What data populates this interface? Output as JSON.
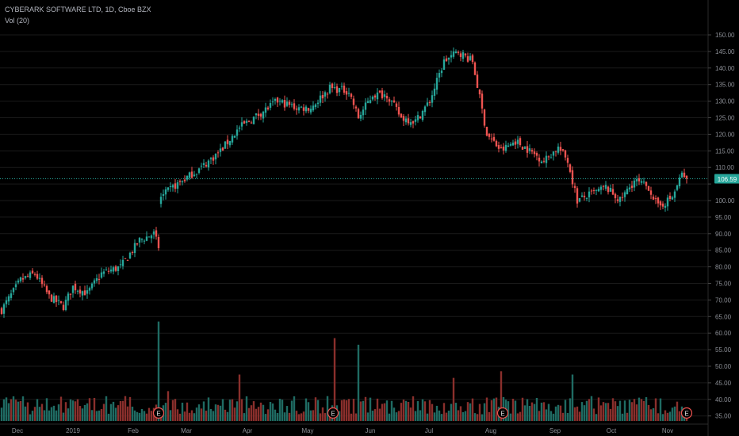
{
  "header": {
    "title": "CYBERARK SOFTWARE LTD, 1D, Cboe BZX",
    "volume_label": "Vol (20)"
  },
  "colors": {
    "up": "#26a69a",
    "down": "#ef5350",
    "vol_up": "#1f6b63",
    "vol_down": "#8a2f2c",
    "price_line": "#26a69a",
    "grid": "#1a1a1a",
    "axis_text": "#8c8f96"
  },
  "chart_data": {
    "type": "candlestick",
    "title": "CYBERARK SOFTWARE LTD, 1D, Cboe BZX",
    "price_axis": {
      "min": 35,
      "max": 150,
      "ticks": [
        35,
        40,
        45,
        50,
        55,
        60,
        65,
        70,
        75,
        80,
        85,
        90,
        95,
        100,
        105,
        110,
        115,
        120,
        125,
        130,
        135,
        140,
        145,
        150
      ]
    },
    "time_axis": {
      "labels": [
        "Dec",
        "2019",
        "Feb",
        "Mar",
        "Apr",
        "May",
        "Jun",
        "Jul",
        "Aug",
        "Sep",
        "Oct",
        "Nov"
      ]
    },
    "last_price": 106.59,
    "last_price_label": "106.59",
    "earnings_markers": [
      "E",
      "E",
      "E",
      "E"
    ],
    "price_anchors": [
      [
        0,
        67
      ],
      [
        8,
        76
      ],
      [
        14,
        78
      ],
      [
        20,
        71
      ],
      [
        26,
        68
      ],
      [
        30,
        74
      ],
      [
        36,
        72
      ],
      [
        42,
        78
      ],
      [
        50,
        80
      ],
      [
        58,
        88
      ],
      [
        64,
        90
      ],
      [
        66,
        86
      ],
      [
        67,
        101
      ],
      [
        72,
        104
      ],
      [
        78,
        107
      ],
      [
        84,
        110
      ],
      [
        92,
        115
      ],
      [
        100,
        122
      ],
      [
        108,
        126
      ],
      [
        116,
        130
      ],
      [
        124,
        128
      ],
      [
        130,
        128
      ],
      [
        138,
        134
      ],
      [
        146,
        133
      ],
      [
        150,
        125
      ],
      [
        156,
        132
      ],
      [
        162,
        132
      ],
      [
        168,
        125
      ],
      [
        174,
        124
      ],
      [
        180,
        130
      ],
      [
        186,
        142
      ],
      [
        192,
        145
      ],
      [
        198,
        142
      ],
      [
        204,
        120
      ],
      [
        210,
        115
      ],
      [
        216,
        118
      ],
      [
        222,
        115
      ],
      [
        228,
        112
      ],
      [
        234,
        116
      ],
      [
        238,
        112
      ],
      [
        242,
        100
      ],
      [
        248,
        102
      ],
      [
        254,
        104
      ],
      [
        260,
        100
      ],
      [
        266,
        106
      ],
      [
        272,
        104
      ],
      [
        276,
        98
      ],
      [
        282,
        101
      ],
      [
        286,
        108
      ],
      [
        288,
        106.59
      ]
    ],
    "volume_anchors": [
      [
        0,
        39
      ],
      [
        40,
        38
      ],
      [
        50,
        41
      ],
      [
        66,
        65
      ],
      [
        70,
        44
      ],
      [
        100,
        49
      ],
      [
        140,
        60
      ],
      [
        150,
        58
      ],
      [
        190,
        48
      ],
      [
        210,
        50
      ],
      [
        240,
        49
      ],
      [
        288,
        38
      ]
    ]
  }
}
